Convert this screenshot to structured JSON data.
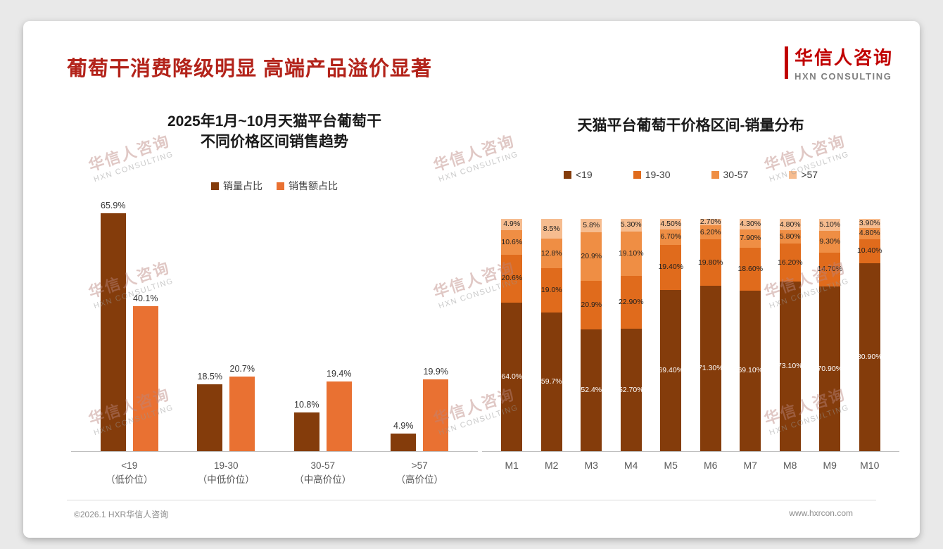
{
  "page": {
    "title": "葡萄干消费降级明显 高端产品溢价显著",
    "logo": {
      "name": "华信人咨询",
      "subtitle": "HXN CONSULTING"
    },
    "footer": {
      "copyright": "©2026.1 HXR华信人咨询",
      "website": "www.hxrcon.com"
    },
    "watermark": {
      "line1": "华信人咨询",
      "line2": "HXN CONSULTING"
    }
  },
  "colors": {
    "title_red": "#B3231A",
    "logo_red": "#C00000",
    "logo_gray": "#7F7F7F",
    "dark_brown": "#843C0B",
    "orange": "#E97132",
    "orange_mid": "#EF8E44",
    "peach": "#F6BC8F"
  },
  "chart_data": [
    {
      "type": "bar",
      "title_lines": [
        "2025年1月~10月天猫平台葡萄干",
        "不同价格区间销售趋势"
      ],
      "categories": [
        [
          "<19",
          "（低价位）"
        ],
        [
          "19-30",
          "（中低价位）"
        ],
        [
          "30-57",
          "（中高价位）"
        ],
        [
          ">57",
          "（高价位）"
        ]
      ],
      "series": [
        {
          "name": "销量占比",
          "color": "#843C0B",
          "values": [
            65.9,
            18.5,
            10.8,
            4.9
          ],
          "labels": [
            "65.9%",
            "18.5%",
            "10.8%",
            "4.9%"
          ]
        },
        {
          "name": "销售额占比",
          "color": "#E97132",
          "values": [
            40.1,
            20.7,
            19.4,
            19.9
          ],
          "labels": [
            "40.1%",
            "20.7%",
            "19.4%",
            "19.9%"
          ]
        }
      ],
      "ylim": [
        0,
        70
      ],
      "grid": false,
      "legend_position": "top"
    },
    {
      "type": "stacked-bar",
      "title_lines": [
        "天猫平台葡萄干价格区间-销量分布"
      ],
      "categories": [
        "M1",
        "M2",
        "M3",
        "M4",
        "M5",
        "M6",
        "M7",
        "M8",
        "M9",
        "M10"
      ],
      "series": [
        {
          "name": "<19",
          "color": "#843C0B",
          "label_color": "#ffffff",
          "values": [
            64.0,
            59.7,
            52.4,
            52.7,
            69.4,
            71.3,
            69.1,
            73.1,
            70.9,
            80.9
          ],
          "labels": [
            "64.0%",
            "59.7%",
            "52.4%",
            "52.70%",
            "69.40%",
            "71.30%",
            "69.10%",
            "73.10%",
            "70.90%",
            "80.90%"
          ]
        },
        {
          "name": "19-30",
          "color": "#E06B1C",
          "label_color": "#1f1f1f",
          "values": [
            20.6,
            19.0,
            20.9,
            22.9,
            19.4,
            19.8,
            18.6,
            16.2,
            14.7,
            10.4
          ],
          "labels": [
            "20.6%",
            "19.0%",
            "20.9%",
            "22.90%",
            "19.40%",
            "19.80%",
            "18.60%",
            "16.20%",
            "14.70%",
            "10.40%"
          ]
        },
        {
          "name": "30-57",
          "color": "#EF8E44",
          "label_color": "#1f1f1f",
          "values": [
            10.6,
            12.8,
            20.9,
            19.1,
            6.7,
            6.2,
            7.9,
            5.8,
            9.3,
            4.8
          ],
          "labels": [
            "10.6%",
            "12.8%",
            "20.9%",
            "19.10%",
            "6.70%",
            "6.20%",
            "7.90%",
            "5.80%",
            "9.30%",
            "4.80%"
          ]
        },
        {
          "name": ">57",
          "color": "#F6BC8F",
          "label_color": "#1f1f1f",
          "values": [
            4.9,
            8.5,
            5.8,
            5.3,
            4.5,
            2.7,
            4.3,
            4.8,
            5.1,
            3.9
          ],
          "labels": [
            "4.9%",
            "8.5%",
            "5.8%",
            "5.30%",
            "4.50%",
            "2.70%",
            "4.30%",
            "4.80%",
            "5.10%",
            "3.90%"
          ]
        }
      ],
      "ylim": [
        0,
        100
      ],
      "grid": false,
      "legend_position": "top"
    }
  ]
}
